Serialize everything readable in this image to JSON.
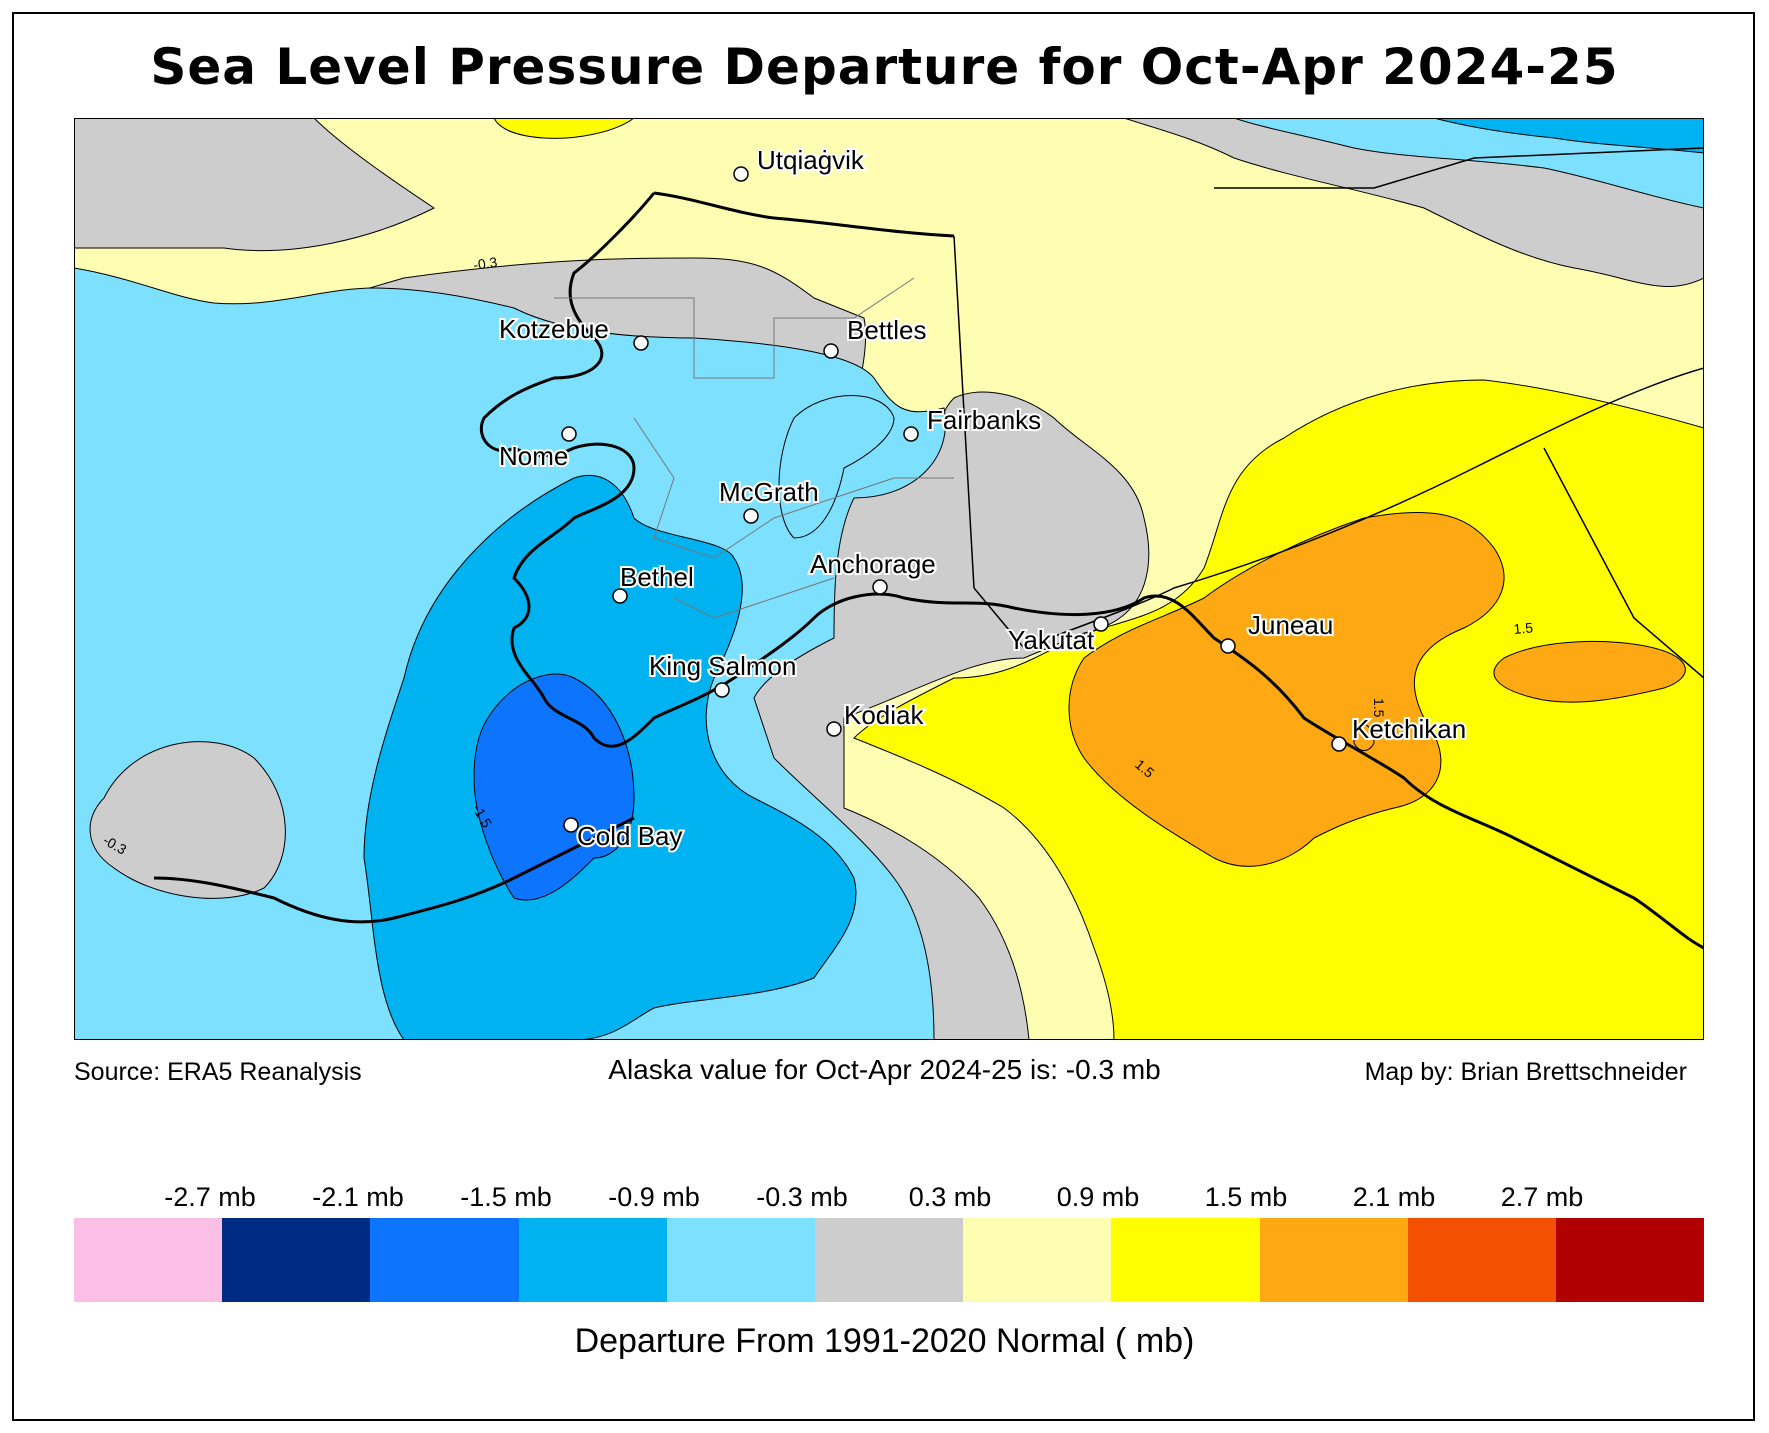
{
  "title": "Sea Level Pressure Departure for Oct-Apr 2024-25",
  "footer": {
    "source": "Source: ERA5 Reanalysis",
    "statewide": "Alaska value for Oct-Apr 2024-25 is: -0.3 mb",
    "credit": "Map by: Brian Brettschneider"
  },
  "legend": {
    "title": "Departure From 1991-2020 Normal ( mb)",
    "colors": [
      "#fbbfe6",
      "#002b85",
      "#0c74fd",
      "#00b2f0",
      "#7de0fe",
      "#cdcdcd",
      "#fefeb3",
      "#fefe00",
      "#fea814",
      "#f45004",
      "#b00000"
    ],
    "ticks": [
      "-2.7 mb",
      "-2.1 mb",
      "-1.5 mb",
      "-0.9 mb",
      "-0.3 mb",
      "0.3 mb",
      "0.9 mb",
      "1.5 mb",
      "2.1 mb",
      "2.7 mb"
    ]
  },
  "map": {
    "cities": [
      {
        "name": "Utqiaġvik"
      },
      {
        "name": "Kotzebue"
      },
      {
        "name": "Bettles"
      },
      {
        "name": "Fairbanks"
      },
      {
        "name": "Nome"
      },
      {
        "name": "McGrath"
      },
      {
        "name": "Anchorage"
      },
      {
        "name": "Bethel"
      },
      {
        "name": "Yakutat"
      },
      {
        "name": "Juneau"
      },
      {
        "name": "King Salmon"
      },
      {
        "name": "Kodiak"
      },
      {
        "name": "Ketchikan"
      },
      {
        "name": "Cold Bay"
      }
    ],
    "contour_labels": [
      "-0.3",
      "-0.3",
      "-1.5",
      "1.5",
      "1.5",
      "1.5"
    ]
  }
}
